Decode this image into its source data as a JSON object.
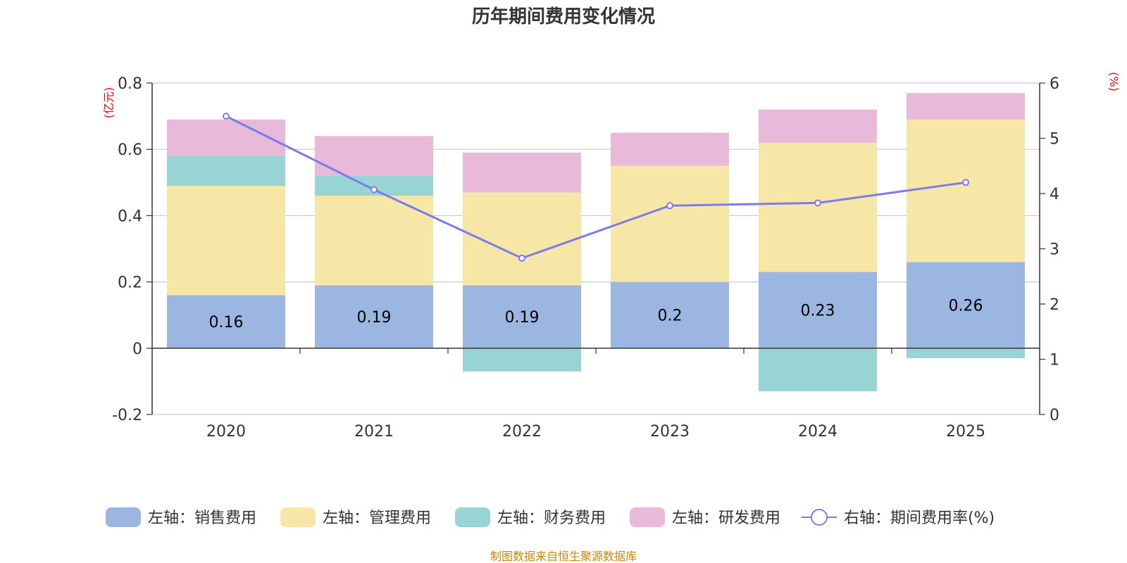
{
  "chart_data": {
    "type": "bar",
    "title": "历年期间费用变化情况",
    "categories": [
      "2020",
      "2021",
      "2022",
      "2023",
      "2024",
      "2025"
    ],
    "left_unit": "(亿元)",
    "right_unit": "(%)",
    "left_ylim": [
      -0.2,
      0.8
    ],
    "left_ticks": [
      0.8,
      0.6,
      0.4,
      0.2,
      0,
      -0.2
    ],
    "left_tick_labels": [
      "0.8",
      "0.6",
      "0.4",
      "0.2",
      "0",
      "-0.2"
    ],
    "right_ylim": [
      0,
      6
    ],
    "right_ticks": [
      6,
      5,
      4,
      3,
      2,
      1,
      0
    ],
    "right_tick_labels": [
      "6",
      "5",
      "4",
      "3",
      "2",
      "1",
      "0"
    ],
    "series": [
      {
        "name": "左轴：销售费用",
        "color": "#9bb6e0",
        "values": [
          0.16,
          0.19,
          0.19,
          0.2,
          0.23,
          0.26
        ]
      },
      {
        "name": "左轴：管理费用",
        "color": "#f7e7a6",
        "values": [
          0.33,
          0.27,
          0.28,
          0.35,
          0.39,
          0.43
        ]
      },
      {
        "name": "左轴：财务费用",
        "color": "#98d4d4",
        "values": [
          0.09,
          0.06,
          -0.07,
          0.0,
          -0.13,
          -0.03
        ]
      },
      {
        "name": "左轴：研发费用",
        "color": "#e8b9d9",
        "values": [
          0.11,
          0.12,
          0.12,
          0.1,
          0.1,
          0.08
        ]
      }
    ],
    "data_labels": [
      "0.16",
      "0.19",
      "0.19",
      "0.2",
      "0.23",
      "0.26"
    ],
    "line_series": {
      "name": "右轴：期间费用率(%)",
      "color": "#7b7bef",
      "values": [
        5.4,
        4.07,
        2.83,
        3.78,
        3.83,
        4.2
      ]
    },
    "gridlines": true,
    "legend_position": "bottom"
  },
  "footer": {
    "source": "制图数据来自恒生聚源数据库"
  }
}
